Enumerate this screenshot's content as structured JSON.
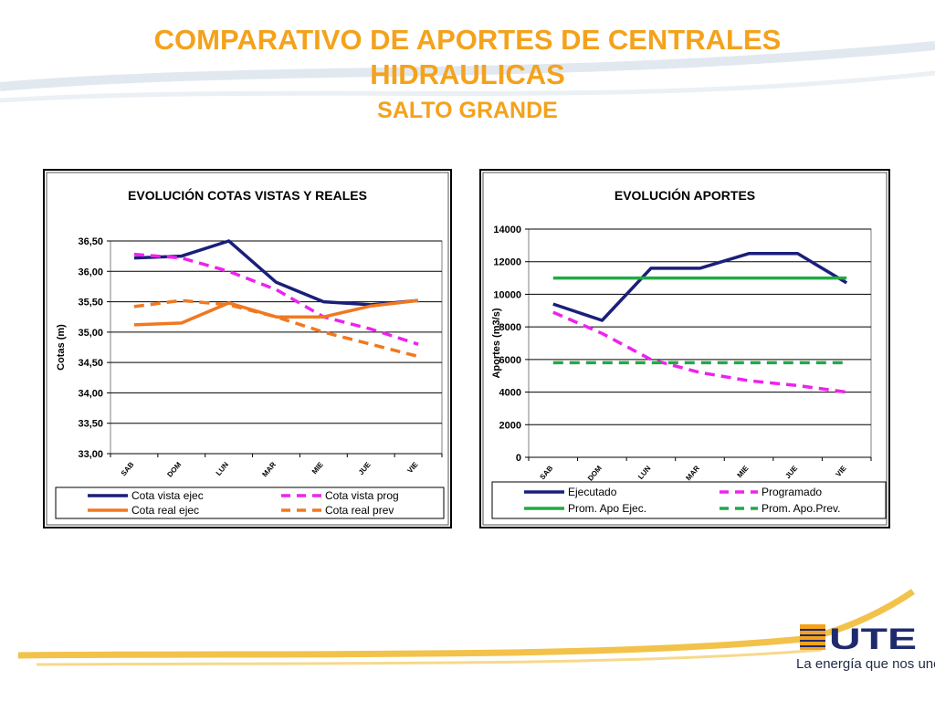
{
  "slide": {
    "title_line1": "COMPARATIVO DE APORTES DE CENTRALES",
    "title_line2": "HIDRAULICAS",
    "subtitle": "SALTO GRANDE",
    "colors": {
      "title": "#f4a21c",
      "accent_swoosh": "#f2c24a",
      "logo_blue": "#1f2a6e"
    }
  },
  "logo": {
    "brand": "UTE",
    "tagline": "La energía que nos une"
  },
  "chart_data": [
    {
      "type": "line",
      "title": "EVOLUCIÓN  COTAS VISTAS Y REALES",
      "xlabel": "",
      "ylabel": "Cotas (m)",
      "categories": [
        "SAB",
        "DOM",
        "LUN",
        "MAR",
        "MIE",
        "JUE",
        "VIE"
      ],
      "ylim": [
        33.0,
        36.5
      ],
      "yticks": [
        33.0,
        33.5,
        34.0,
        34.5,
        35.0,
        35.5,
        36.0,
        36.5
      ],
      "ytick_labels": [
        "33,00",
        "33,50",
        "34,00",
        "34,50",
        "35,00",
        "35,50",
        "36,00",
        "36,50"
      ],
      "grid": true,
      "legend": "bottom",
      "series": [
        {
          "name": "Cota vista ejec",
          "color": "#1a1f7a",
          "dash": "solid",
          "values": [
            36.22,
            36.25,
            36.5,
            35.82,
            35.5,
            35.45,
            35.52
          ]
        },
        {
          "name": "Cota vista prog",
          "color": "#ee22ee",
          "dash": "dashed",
          "values": [
            36.28,
            36.22,
            36.0,
            35.7,
            35.25,
            35.05,
            34.8
          ]
        },
        {
          "name": "Cota real ejec",
          "color": "#f07820",
          "dash": "solid",
          "values": [
            35.12,
            35.15,
            35.48,
            35.25,
            35.25,
            35.43,
            35.52
          ]
        },
        {
          "name": "Cota real prev",
          "color": "#f07820",
          "dash": "dashed",
          "values": [
            35.42,
            35.52,
            35.45,
            35.25,
            35.0,
            34.8,
            34.6
          ]
        }
      ]
    },
    {
      "type": "line",
      "title": "EVOLUCIÓN  APORTES",
      "xlabel": "",
      "ylabel": "Aportes (m3/s)",
      "categories": [
        "SAB",
        "DOM",
        "LUN",
        "MAR",
        "MIE",
        "JUE",
        "VIE"
      ],
      "ylim": [
        0,
        14000
      ],
      "yticks": [
        0,
        2000,
        4000,
        6000,
        8000,
        10000,
        12000,
        14000
      ],
      "ytick_labels": [
        "0",
        "2000",
        "4000",
        "6000",
        "8000",
        "10000",
        "12000",
        "14000"
      ],
      "grid": true,
      "legend": "bottom",
      "series": [
        {
          "name": "Ejecutado",
          "color": "#1a1f7a",
          "dash": "solid",
          "values": [
            9400,
            8400,
            11600,
            11600,
            12500,
            12500,
            10700
          ]
        },
        {
          "name": "Programado",
          "color": "#ee22ee",
          "dash": "dashed",
          "values": [
            8900,
            7600,
            6000,
            5200,
            4700,
            4400,
            4000
          ]
        },
        {
          "name": "Prom. Apo Ejec.",
          "color": "#22aa44",
          "dash": "solid",
          "values": [
            11000,
            11000,
            11000,
            11000,
            11000,
            11000,
            11000
          ]
        },
        {
          "name": "Prom. Apo.Prev.",
          "color": "#22aa44",
          "dash": "dashed",
          "values": [
            5800,
            5800,
            5800,
            5800,
            5800,
            5800,
            5800
          ]
        }
      ]
    }
  ]
}
